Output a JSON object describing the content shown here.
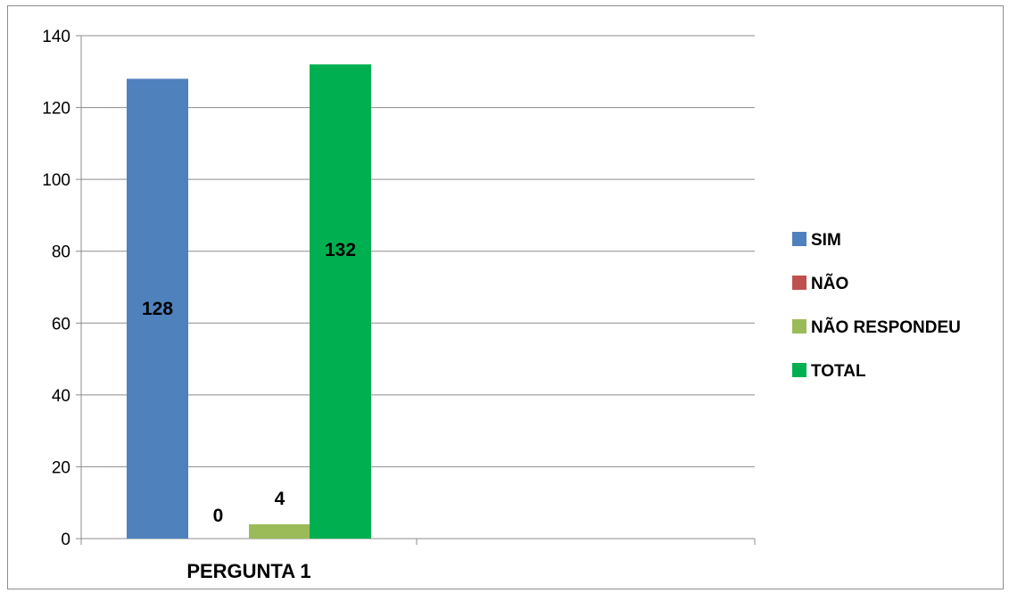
{
  "chart_data": {
    "type": "bar",
    "categories": [
      "PERGUNTA 1"
    ],
    "series": [
      {
        "name": "SIM",
        "values": [
          128
        ],
        "color": "#4f81bd"
      },
      {
        "name": "NÃO",
        "values": [
          0
        ],
        "color": "#c0504d"
      },
      {
        "name": "NÃO RESPONDEU",
        "values": [
          4
        ],
        "color": "#9bbb59"
      },
      {
        "name": "TOTAL",
        "values": [
          132
        ],
        "color": "#00b050"
      }
    ],
    "ylim": [
      0,
      140
    ],
    "yticks": [
      0,
      20,
      40,
      60,
      80,
      100,
      120,
      140
    ],
    "grid": true,
    "legend": "right",
    "data_labels": [
      "128",
      "0",
      "4",
      "132"
    ]
  }
}
